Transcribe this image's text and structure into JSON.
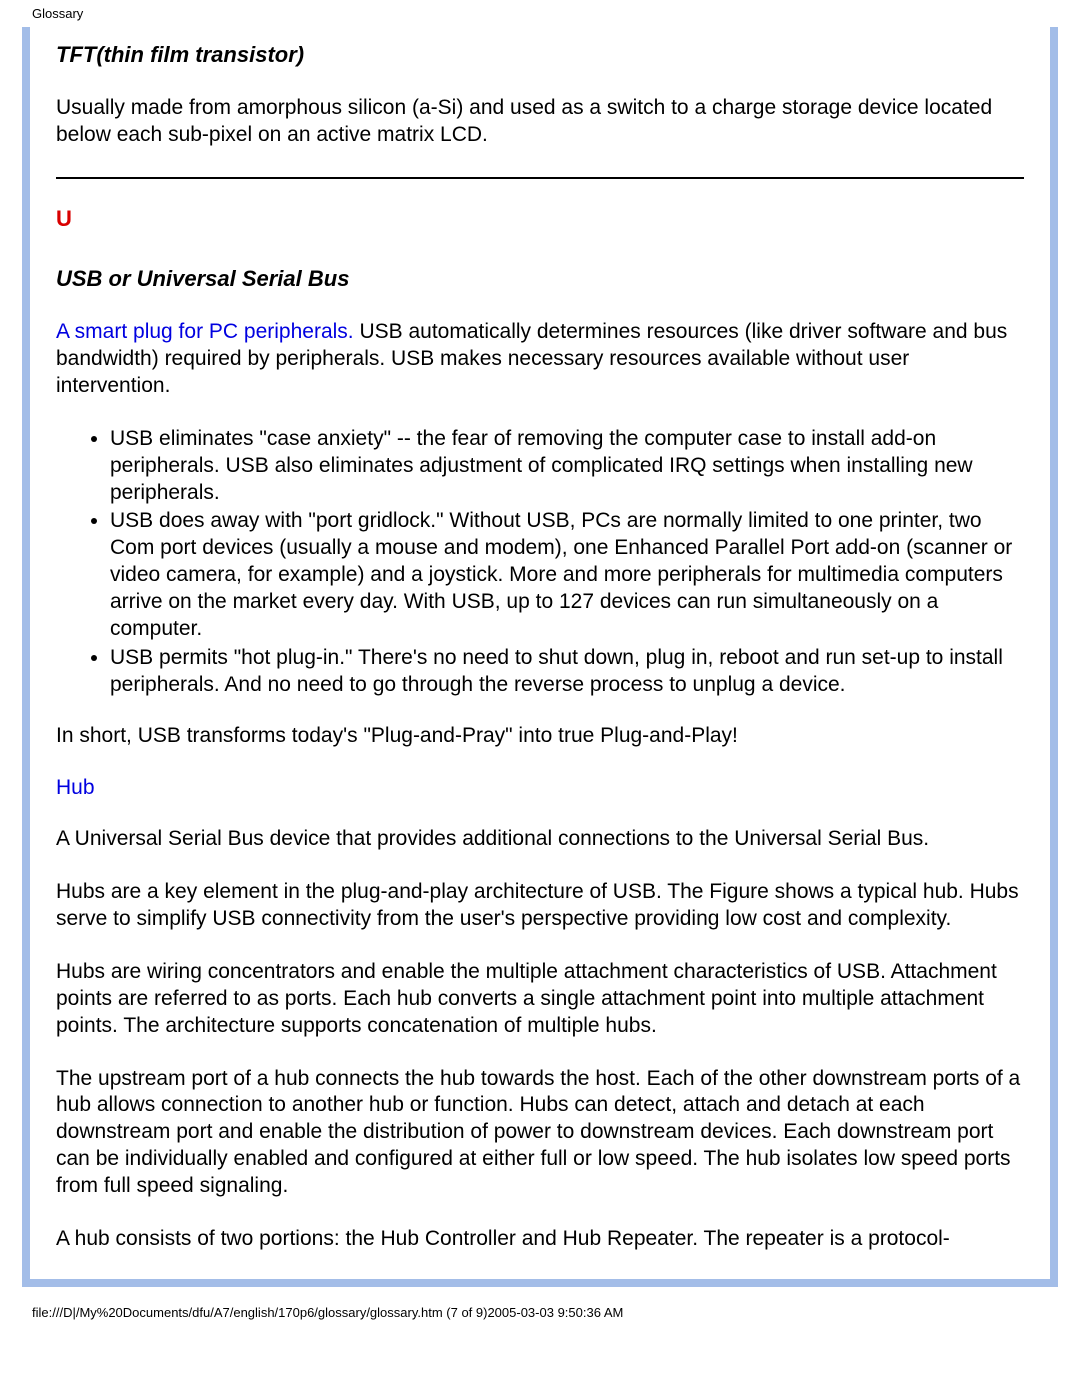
{
  "header": {
    "title": "Glossary"
  },
  "colors": {
    "page_background": "#ffffff",
    "outer_background": "#a3bde8",
    "inner_background": "#ffffff",
    "text": "#000000",
    "link": "#0000e0",
    "letter": "#d90000",
    "rule": "#000000"
  },
  "typography": {
    "body_fontsize_pt": 16,
    "heading_fontsize_pt": 17,
    "header_fontsize_pt": 10,
    "footer_fontsize_pt": 10,
    "body_font_family": "Arial"
  },
  "tft": {
    "heading": "TFT(thin film transistor)",
    "para": "Usually made from amorphous silicon (a-Si) and used as a switch to a charge storage device located below each sub-pixel on an active matrix LCD."
  },
  "section_letter": "U",
  "usb": {
    "heading": "USB or Universal Serial Bus",
    "lead_link": "A smart plug for PC peripherals.",
    "lead_rest": " USB automatically determines resources (like driver software and bus bandwidth) required by peripherals. USB makes necessary resources available without user intervention.",
    "bullets": [
      "USB eliminates \"case anxiety\" -- the fear of removing the computer case to install add-on peripherals. USB also eliminates adjustment of complicated IRQ settings when installing new peripherals.",
      "USB does away with \"port gridlock.\" Without USB, PCs are normally limited to one printer, two Com port devices (usually a mouse and modem), one Enhanced Parallel Port add-on (scanner or video camera, for example) and a joystick. More and more peripherals for multimedia computers arrive on the market every day. With USB, up to 127 devices can run simultaneously on a computer.",
      "USB permits \"hot plug-in.\" There's no need to shut down, plug in, reboot and run set-up to install peripherals. And no need to go through the reverse process to unplug a device."
    ],
    "summary": "In short, USB transforms today's \"Plug-and-Pray\" into true Plug-and-Play!"
  },
  "hub": {
    "heading": "Hub",
    "p1": "A Universal Serial Bus device that provides additional connections to the Universal Serial Bus.",
    "p2": "Hubs are a key element in the plug-and-play architecture of USB. The Figure shows a typical hub. Hubs serve to simplify USB connectivity from the user's perspective providing low cost and complexity.",
    "p3": "Hubs are wiring concentrators and enable the multiple attachment characteristics of USB. Attachment points are referred to as ports. Each hub converts a single attachment point into multiple attachment points. The architecture supports concatenation of multiple hubs.",
    "p4": "The upstream port of a hub connects the hub towards the host. Each of the other downstream ports of a hub allows connection to another hub or function. Hubs can detect, attach and detach at each downstream port and enable the distribution of power to downstream devices. Each downstream port can be individually enabled and configured at either full or low speed. The hub isolates low speed ports from full speed signaling.",
    "p5": "A hub consists of two portions: the Hub Controller and Hub Repeater. The repeater is a protocol-"
  },
  "footer": {
    "text": "file:///D|/My%20Documents/dfu/A7/english/170p6/glossary/glossary.htm (7 of 9)2005-03-03 9:50:36 AM"
  }
}
